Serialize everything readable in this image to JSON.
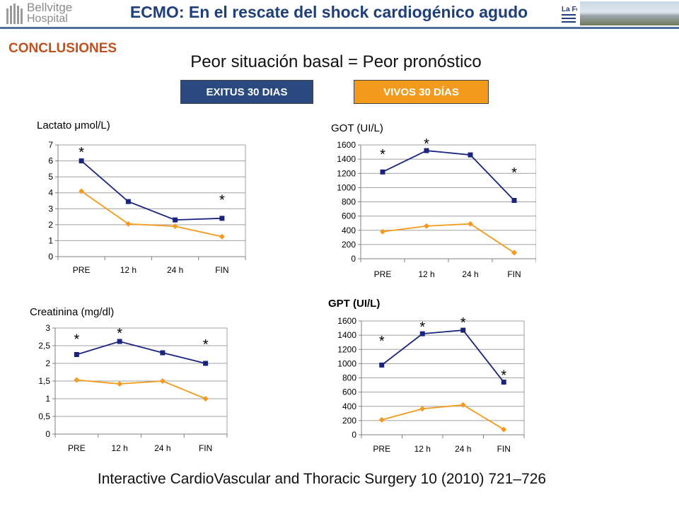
{
  "header": {
    "logo_name": "Bellvitge",
    "logo_sub": "Hospital",
    "title": "ECMO: En el rescate del shock cardiogénico agudo",
    "right_logo": "La Fe"
  },
  "section_label": "CONCLUSIONES",
  "subtitle": "Peor situación basal = Peor pronóstico",
  "legend": {
    "exitus": "EXITUS 30 DIAS",
    "vivos": "VIVOS 30 DÍAS"
  },
  "colors": {
    "exitus": "#1a237e",
    "vivos": "#f39a1c",
    "header_text": "#1f3f7a",
    "section": "#c0501f"
  },
  "chart_data": [
    {
      "type": "line",
      "title": "Lactato μmol/L)",
      "categories": [
        "PRE",
        "12 h",
        "24 h",
        "FIN"
      ],
      "ylim": [
        0,
        7
      ],
      "yticks": [
        0,
        1,
        2,
        3,
        4,
        5,
        6,
        7
      ],
      "yticklabels": [
        "0",
        "1",
        "2",
        "3",
        "4",
        "5",
        "6",
        "7"
      ],
      "series": [
        {
          "values": [
            6.0,
            3.45,
            2.3,
            2.4
          ]
        },
        {
          "values": [
            4.1,
            2.05,
            1.9,
            1.25
          ]
        }
      ],
      "significance": [
        {
          "label": "*",
          "index": 0,
          "y": 6.7
        },
        {
          "label": "*",
          "index": 3,
          "y": 3.7
        }
      ]
    },
    {
      "type": "line",
      "title": "GOT (UI/L)",
      "categories": [
        "PRE",
        "12 h",
        "24 h",
        "FIN"
      ],
      "ylim": [
        0,
        1600
      ],
      "yticks": [
        0,
        200,
        400,
        600,
        800,
        1000,
        1200,
        1400,
        1600
      ],
      "yticklabels": [
        "0",
        "200",
        "400",
        "600",
        "800",
        "1000",
        "1200",
        "1400",
        "1600"
      ],
      "series": [
        {
          "values": [
            1220,
            1520,
            1460,
            820
          ]
        },
        {
          "values": [
            380,
            460,
            490,
            85
          ]
        }
      ],
      "significance": [
        {
          "label": "*",
          "index": 0,
          "y": 1500
        },
        {
          "label": "*",
          "index": 1,
          "y": 1650
        },
        {
          "label": "*",
          "index": 3,
          "y": 1240
        }
      ]
    },
    {
      "type": "line",
      "title": "Creatinina (mg/dl)",
      "categories": [
        "PRE",
        "12 h",
        "24 h",
        "FIN"
      ],
      "ylim": [
        0,
        3
      ],
      "yticks": [
        0,
        0.5,
        1,
        1.5,
        2,
        2.5,
        3
      ],
      "yticklabels": [
        "0",
        "0,5",
        "1",
        "1,5",
        "2",
        "2,5",
        "3"
      ],
      "series": [
        {
          "values": [
            2.25,
            2.62,
            2.3,
            2.0
          ]
        },
        {
          "values": [
            1.53,
            1.42,
            1.5,
            1.0
          ]
        }
      ],
      "significance": [
        {
          "label": "*",
          "index": 0,
          "y": 2.75
        },
        {
          "label": "*",
          "index": 1,
          "y": 2.92
        },
        {
          "label": "*",
          "index": 3,
          "y": 2.6
        }
      ]
    },
    {
      "type": "line",
      "title": "GPT (UI/L)",
      "categories": [
        "PRE",
        "12 h",
        "24 h",
        "FIN"
      ],
      "ylim": [
        0,
        1600
      ],
      "yticks": [
        0,
        200,
        400,
        600,
        800,
        1000,
        1200,
        1400,
        1600
      ],
      "yticklabels": [
        "0",
        "200",
        "400",
        "600",
        "800",
        "1000",
        "1200",
        "1400",
        "1600"
      ],
      "series": [
        {
          "values": [
            980,
            1420,
            1470,
            740
          ]
        },
        {
          "values": [
            210,
            365,
            420,
            75
          ]
        }
      ],
      "significance": [
        {
          "label": "*",
          "index": 0,
          "y": 1350
        },
        {
          "label": "*",
          "index": 1,
          "y": 1550
        },
        {
          "label": "*",
          "index": 2,
          "y": 1610
        },
        {
          "label": "*",
          "index": 3,
          "y": 870
        }
      ]
    }
  ],
  "footer": "Interactive CardioVascular and Thoracic Surgery 10 (2010) 721–726"
}
